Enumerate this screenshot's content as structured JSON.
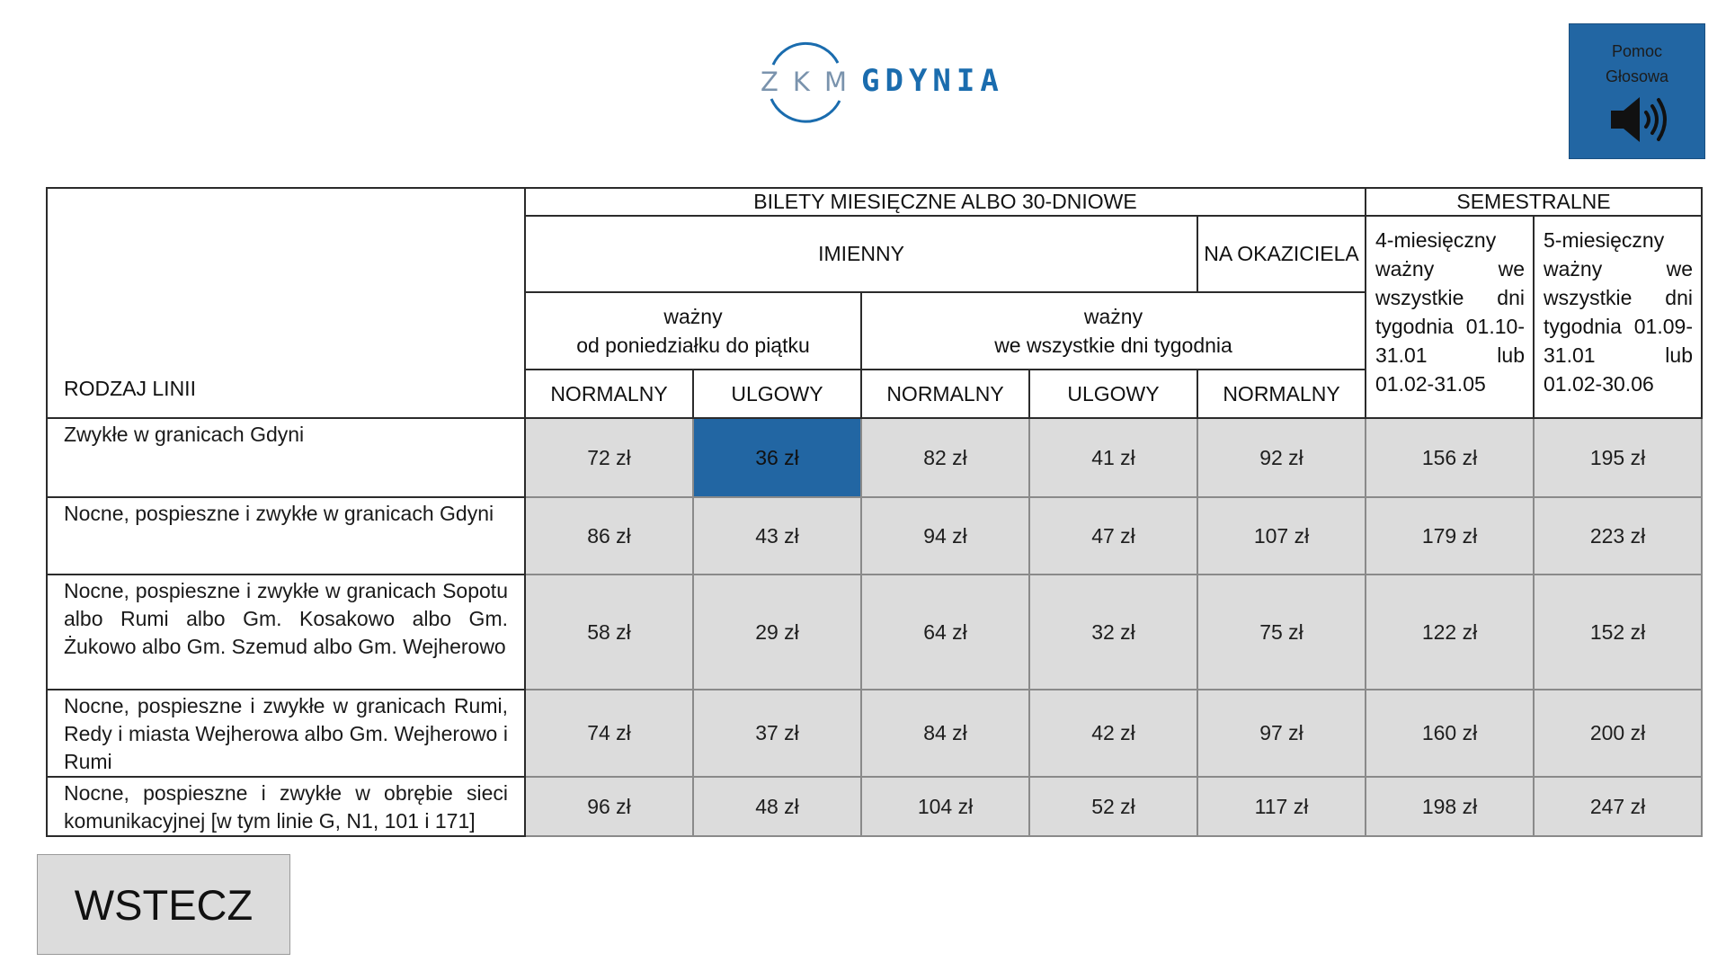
{
  "header": {
    "logo_letters": [
      "Z",
      "K",
      "M"
    ],
    "logo_city": "GDYNIA",
    "help_line1": "Pomoc",
    "help_line2": "Głosowa",
    "help_icon": "speaker-icon"
  },
  "table": {
    "rodzaj_label": "RODZAJ LINII",
    "group_monthly": "BILETY MIESIĘCZNE ALBO 30-DNIOWE",
    "group_semester": "SEMESTRALNE",
    "imienny": "IMIENNY",
    "na_okaziciela": "NA OKAZICIELA",
    "weekday_line1": "ważny",
    "weekday_line2": "od poniedziałku do piątku",
    "allweek_line1": "ważny",
    "allweek_line2": "we wszystkie dni tygodnia",
    "sem4": "4-miesięczny ważny we wszystkie dni tygodnia 01.10-31.01 lub 01.02-31.05",
    "sem5": "5-miesięczny ważny we wszystkie dni tygodnia 01.09-31.01 lub 01.02-30.06",
    "col_normalny_1": "NORMALNY",
    "col_ulgowy_1": "ULGOWY",
    "col_normalny_2": "NORMALNY",
    "col_ulgowy_2": "ULGOWY",
    "col_normalny_3": "NORMALNY",
    "rows": [
      {
        "label": "Zwykłe w granicach Gdyni",
        "prices": [
          "72 zł",
          "36 zł",
          "82 zł",
          "41 zł",
          "92 zł",
          "156 zł",
          "195 zł"
        ]
      },
      {
        "label": "Nocne, pospieszne i zwykłe w granicach Gdyni",
        "prices": [
          "86 zł",
          "43 zł",
          "94 zł",
          "47 zł",
          "107 zł",
          "179 zł",
          "223 zł"
        ]
      },
      {
        "label": "Nocne, pospieszne i zwykłe w granicach Sopotu albo Rumi albo Gm. Kosakowo albo Gm. Żukowo albo Gm. Szemud albo Gm. Wejherowo",
        "prices": [
          "58 zł",
          "29 zł",
          "64 zł",
          "32 zł",
          "75 zł",
          "122 zł",
          "152 zł"
        ]
      },
      {
        "label": "Nocne, pospieszne i zwykłe w granicach Rumi, Redy i miasta Wejherowa albo Gm. Wejherowo i Rumi",
        "prices": [
          "74 zł",
          "37 zł",
          "84 zł",
          "42 zł",
          "97 zł",
          "160 zł",
          "200 zł"
        ]
      },
      {
        "label": "Nocne, pospieszne i zwykłe w obrębie sieci komunikacyjnej [w tym linie G, N1, 101 i 171]",
        "prices": [
          "96 zł",
          "48 zł",
          "104 zł",
          "52 zł",
          "117 zł",
          "198 zł",
          "247 zł"
        ]
      }
    ],
    "selected_row": 0,
    "selected_col": 1
  },
  "footer": {
    "back_label": "WSTECZ"
  },
  "colors": {
    "accent": "#2266a3",
    "price_bg": "#dcdcdc",
    "logo_blue": "#1a6cae"
  }
}
